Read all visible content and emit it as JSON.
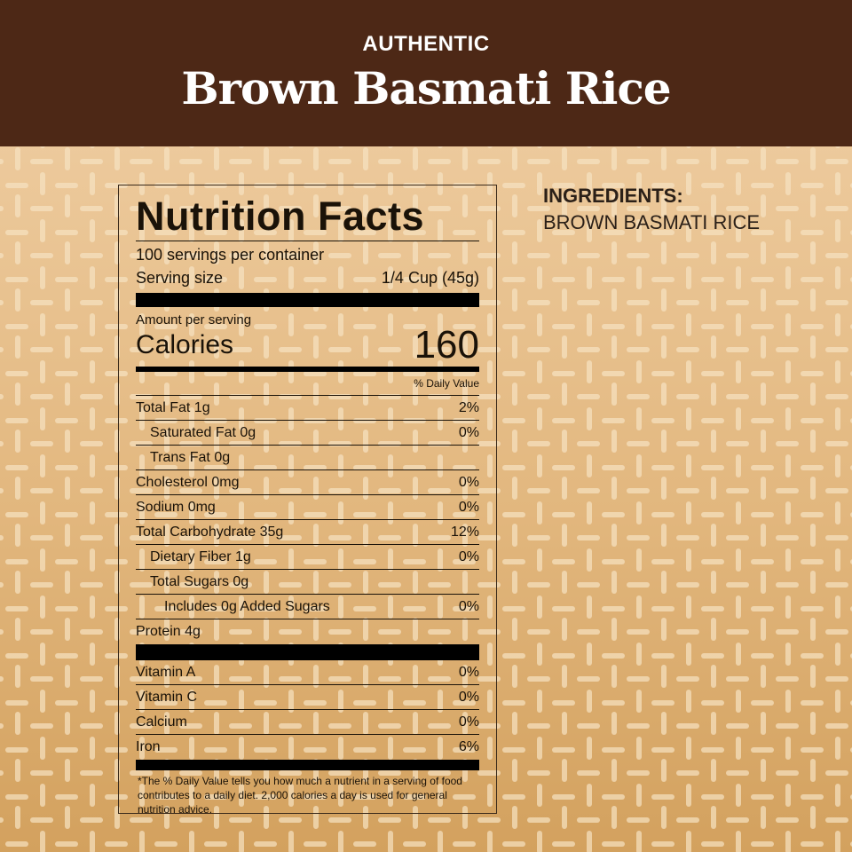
{
  "header": {
    "subtitle": "AUTHENTIC",
    "title": "Brown Basmati Rice"
  },
  "colors": {
    "header": "#4d2816",
    "background_top": "#f1d1a8",
    "background_bottom": "#d3a15e"
  },
  "label": {
    "title": "Nutrition Facts",
    "servings": "100 servings per container",
    "serving_size_label": "Serving size",
    "serving_size_value": "1/4 Cup (45g)",
    "amount_per_serving": "Amount per serving",
    "calories_label": "Calories",
    "calories_value": "160",
    "daily_value_header": "% Daily Value",
    "nutrients": [
      {
        "name": "Total Fat 1g",
        "dv": "2%",
        "indent": 0
      },
      {
        "name": "Saturated Fat 0g",
        "dv": "0%",
        "indent": 1
      },
      {
        "name": "Trans Fat 0g",
        "dv": "",
        "indent": 1
      },
      {
        "name": "Cholesterol 0mg",
        "dv": "0%",
        "indent": 0
      },
      {
        "name": "Sodium 0mg",
        "dv": "0%",
        "indent": 0
      },
      {
        "name": "Total Carbohydrate 35g",
        "dv": "12%",
        "indent": 0
      },
      {
        "name": "Dietary Fiber 1g",
        "dv": "0%",
        "indent": 1
      },
      {
        "name": "Total Sugars 0g",
        "dv": "",
        "indent": 1
      },
      {
        "name": "Includes 0g Added Sugars",
        "dv": "0%",
        "indent": 2
      },
      {
        "name": "Protein 4g",
        "dv": "",
        "indent": 0
      }
    ],
    "vitamins": [
      {
        "name": "Vitamin A",
        "dv": "0%"
      },
      {
        "name": "Vitamin C",
        "dv": "0%"
      },
      {
        "name": "Calcium",
        "dv": "0%"
      },
      {
        "name": "Iron",
        "dv": "6%"
      }
    ],
    "footnote": "*The % Daily Value tells you how much a nutrient in a serving of food contributes to a daily diet. 2,000 calories a day is used for general nutrition advice."
  },
  "ingredients": {
    "heading": "INGREDIENTS:",
    "text": "BROWN BASMATI RICE"
  }
}
